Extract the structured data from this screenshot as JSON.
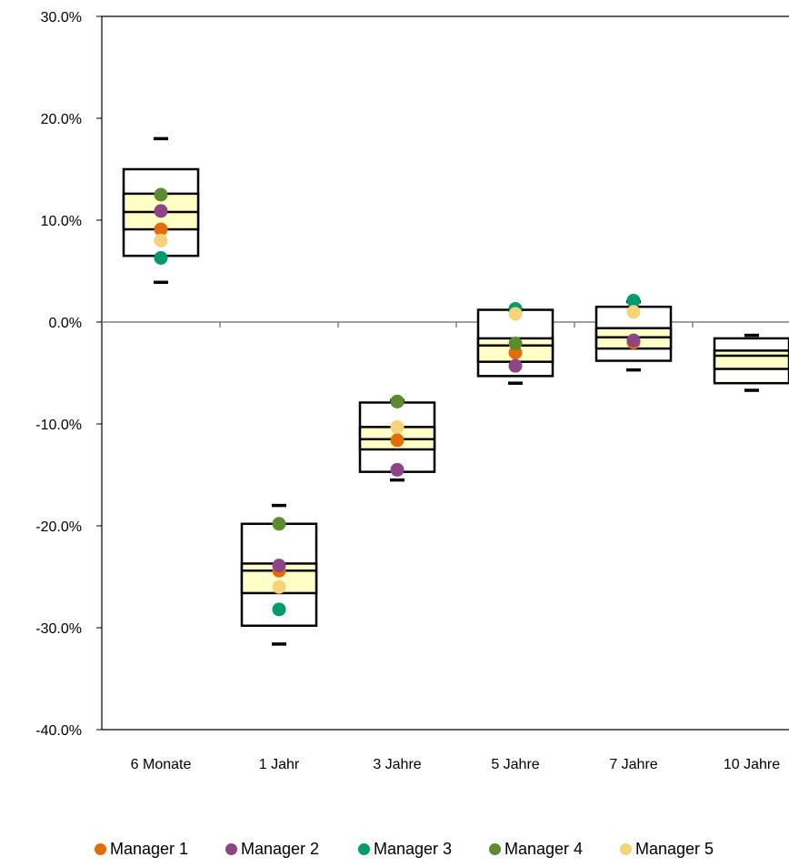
{
  "chart_data": {
    "type": "box",
    "categories": [
      "6 Monate",
      "1 Jahr",
      "3 Jahre",
      "5 Jahre",
      "7 Jahre",
      "10 Jahre"
    ],
    "y_ticks": [
      "30.0%",
      "20.0%",
      "10.0%",
      "0.0%",
      "-10.0%",
      "-20.0%",
      "-30.0%",
      "-40.0%"
    ],
    "ylim": [
      -40,
      30
    ],
    "y_unit": "percent",
    "grid": false,
    "legend_position": "bottom",
    "boxes": [
      {
        "whisker_high": 18.0,
        "box_high": 15.0,
        "q_upper": 12.6,
        "median": 10.8,
        "q_lower": 9.1,
        "box_low": 6.5,
        "whisker_low": 3.9
      },
      {
        "whisker_high": -18.0,
        "box_high": -19.8,
        "q_upper": -23.7,
        "median": -24.4,
        "q_lower": -26.6,
        "box_low": -29.8,
        "whisker_low": -31.6
      },
      {
        "whisker_high": -7.7,
        "box_high": -7.9,
        "q_upper": -10.3,
        "median": -11.5,
        "q_lower": -12.5,
        "box_low": -14.7,
        "whisker_low": -15.5
      },
      {
        "whisker_high": 1.2,
        "box_high": 1.2,
        "q_upper": -1.6,
        "median": -2.3,
        "q_lower": -3.9,
        "box_low": -5.3,
        "whisker_low": -6.0
      },
      {
        "whisker_high": 2.0,
        "box_high": 1.5,
        "q_upper": -0.6,
        "median": -1.5,
        "q_lower": -2.6,
        "box_low": -3.8,
        "whisker_low": -4.7
      },
      {
        "whisker_high": -1.3,
        "box_high": -1.6,
        "q_upper": -2.8,
        "median": -3.3,
        "q_lower": -4.6,
        "box_low": -6.0,
        "whisker_low": -6.7
      }
    ],
    "series": [
      {
        "name": "Manager 1",
        "color": "#e36c0a",
        "values": [
          9.1,
          -24.4,
          -11.6,
          -3.0,
          -2.0,
          null
        ]
      },
      {
        "name": "Manager 2",
        "color": "#8e4585",
        "values": [
          10.9,
          -23.9,
          -14.5,
          -4.3,
          -1.8,
          null
        ]
      },
      {
        "name": "Manager 3",
        "color": "#009a6e",
        "values": [
          6.3,
          -28.2,
          -7.8,
          1.3,
          2.1,
          null
        ]
      },
      {
        "name": "Manager 4",
        "color": "#5e8a30",
        "values": [
          12.5,
          -19.8,
          -7.8,
          -2.1,
          null,
          null
        ]
      },
      {
        "name": "Manager 5",
        "color": "#f5d37a",
        "values": [
          8.0,
          -26.0,
          -10.3,
          0.8,
          1.0,
          null
        ]
      }
    ],
    "colors": {
      "box_fill": "#ffffff",
      "quartile_fill": "#ffffc6",
      "axis": "#808080"
    }
  }
}
